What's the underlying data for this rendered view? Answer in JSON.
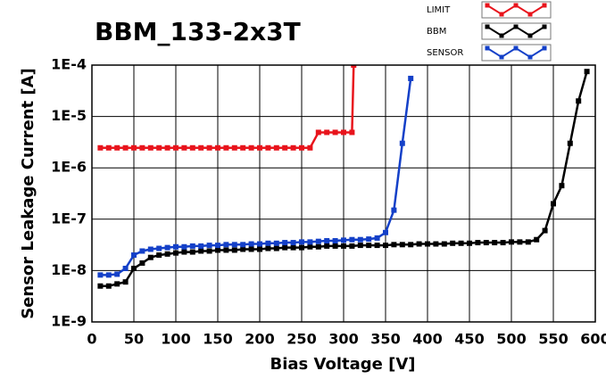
{
  "chart_data": {
    "type": "line",
    "title": "BBM_133-2x3T",
    "x_label": "Bias Voltage [V]",
    "y_label": "Sensor Leakage Current [A]",
    "xlim": [
      0,
      600
    ],
    "xticks": [
      0,
      50,
      100,
      150,
      200,
      250,
      300,
      350,
      400,
      450,
      500,
      550,
      600
    ],
    "ylim": [
      1e-09,
      0.0001
    ],
    "log_y": true,
    "grid": true,
    "yticks": [
      {
        "value": 1e-09,
        "label": "1E-9"
      },
      {
        "value": 1e-08,
        "label": "1E-8"
      },
      {
        "value": 1e-07,
        "label": "1E-7"
      },
      {
        "value": 1e-06,
        "label": "1E-6"
      },
      {
        "value": 1e-05,
        "label": "1E-5"
      },
      {
        "value": 0.0001,
        "label": "1E-4"
      }
    ],
    "series": [
      {
        "name": "LIMIT",
        "color": "#e8141c",
        "x": [
          10,
          20,
          30,
          40,
          50,
          60,
          70,
          80,
          90,
          100,
          110,
          120,
          130,
          140,
          150,
          160,
          170,
          180,
          190,
          200,
          210,
          220,
          230,
          240,
          250,
          260,
          270,
          280,
          290,
          300,
          310,
          312
        ],
        "values": [
          2.45e-06,
          2.45e-06,
          2.45e-06,
          2.45e-06,
          2.45e-06,
          2.45e-06,
          2.45e-06,
          2.45e-06,
          2.45e-06,
          2.45e-06,
          2.45e-06,
          2.45e-06,
          2.45e-06,
          2.45e-06,
          2.45e-06,
          2.45e-06,
          2.45e-06,
          2.45e-06,
          2.45e-06,
          2.45e-06,
          2.45e-06,
          2.45e-06,
          2.45e-06,
          2.45e-06,
          2.45e-06,
          2.45e-06,
          4.9e-06,
          4.9e-06,
          4.9e-06,
          4.9e-06,
          4.9e-06,
          0.0001
        ]
      },
      {
        "name": "BBM",
        "color": "#000000",
        "x": [
          10,
          20,
          30,
          40,
          50,
          60,
          70,
          80,
          90,
          100,
          110,
          120,
          130,
          140,
          150,
          160,
          170,
          180,
          190,
          200,
          210,
          220,
          230,
          240,
          250,
          260,
          270,
          280,
          290,
          300,
          310,
          320,
          330,
          340,
          350,
          360,
          370,
          380,
          390,
          400,
          410,
          420,
          430,
          440,
          450,
          460,
          470,
          480,
          490,
          500,
          510,
          520,
          530,
          540,
          550,
          560,
          570,
          580,
          590
        ],
        "values": [
          5e-09,
          5e-09,
          5.5e-09,
          6e-09,
          1.1e-08,
          1.4e-08,
          1.8e-08,
          2e-08,
          2.1e-08,
          2.2e-08,
          2.3e-08,
          2.3e-08,
          2.4e-08,
          2.4e-08,
          2.5e-08,
          2.5e-08,
          2.5e-08,
          2.6e-08,
          2.6e-08,
          2.6e-08,
          2.7e-08,
          2.7e-08,
          2.8e-08,
          2.8e-08,
          2.8e-08,
          2.9e-08,
          2.9e-08,
          3e-08,
          3e-08,
          3e-08,
          3e-08,
          3.1e-08,
          3.1e-08,
          3.1e-08,
          3.1e-08,
          3.2e-08,
          3.2e-08,
          3.2e-08,
          3.3e-08,
          3.3e-08,
          3.3e-08,
          3.3e-08,
          3.4e-08,
          3.4e-08,
          3.4e-08,
          3.5e-08,
          3.5e-08,
          3.5e-08,
          3.5e-08,
          3.6e-08,
          3.6e-08,
          3.6e-08,
          4e-08,
          6e-08,
          2e-07,
          4.5e-07,
          3e-06,
          2e-05,
          7.5e-05
        ]
      },
      {
        "name": "SENSOR",
        "color": "#1440c8",
        "x": [
          10,
          20,
          30,
          40,
          50,
          60,
          70,
          80,
          90,
          100,
          110,
          120,
          130,
          140,
          150,
          160,
          170,
          180,
          190,
          200,
          210,
          220,
          230,
          240,
          250,
          260,
          270,
          280,
          290,
          300,
          310,
          320,
          330,
          340,
          350,
          360,
          370,
          380
        ],
        "values": [
          8.2e-09,
          8.2e-09,
          8.5e-09,
          1.1e-08,
          2e-08,
          2.4e-08,
          2.6e-08,
          2.7e-08,
          2.8e-08,
          2.9e-08,
          2.9e-08,
          3e-08,
          3e-08,
          3.1e-08,
          3.1e-08,
          3.2e-08,
          3.2e-08,
          3.2e-08,
          3.3e-08,
          3.3e-08,
          3.4e-08,
          3.4e-08,
          3.5e-08,
          3.5e-08,
          3.6e-08,
          3.6e-08,
          3.7e-08,
          3.8e-08,
          3.8e-08,
          3.9e-08,
          4e-08,
          4e-08,
          4.1e-08,
          4.3e-08,
          5.5e-08,
          1.5e-07,
          3e-06,
          5.5e-05
        ]
      }
    ]
  }
}
